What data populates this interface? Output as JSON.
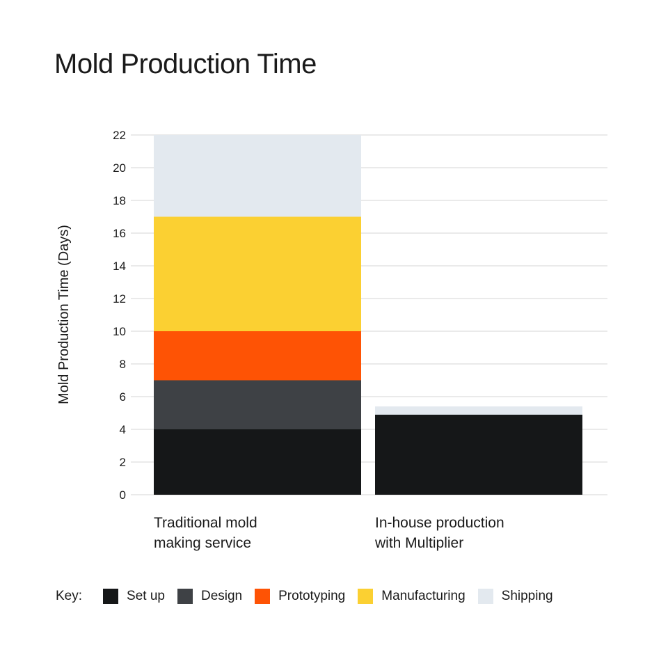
{
  "chart_data": {
    "type": "bar",
    "stacked": true,
    "title": "Mold Production Time",
    "ylabel": "Mold Production Time (Days)",
    "xlabel": "",
    "ylim": [
      0,
      22
    ],
    "yticks": [
      0,
      2,
      4,
      6,
      8,
      10,
      12,
      14,
      16,
      18,
      20,
      22
    ],
    "grid": true,
    "categories": [
      [
        "Traditional mold",
        "making service"
      ],
      [
        "In-house production",
        "with Multiplier"
      ]
    ],
    "series": [
      {
        "name": "Set up",
        "color": "#151718",
        "values": [
          4,
          4.9
        ]
      },
      {
        "name": "Design",
        "color": "#3e4145",
        "values": [
          3,
          0
        ]
      },
      {
        "name": "Prototyping",
        "color": "#fe5305",
        "values": [
          3,
          0
        ]
      },
      {
        "name": "Manufacturing",
        "color": "#fbd032",
        "values": [
          7,
          0
        ]
      },
      {
        "name": "Shipping",
        "color": "#e3e9ef",
        "values": [
          5,
          0.5
        ]
      }
    ],
    "legend": {
      "label": "Key:",
      "placement": "bottom"
    }
  }
}
